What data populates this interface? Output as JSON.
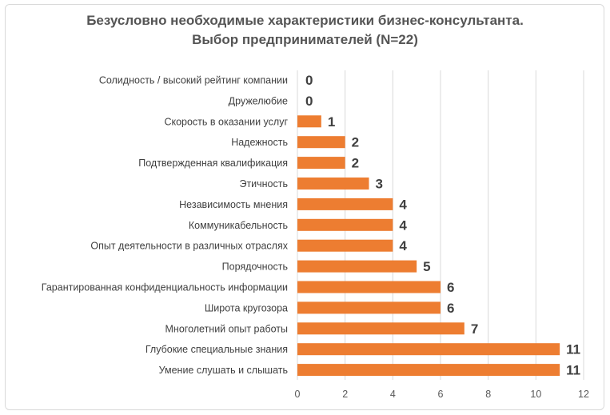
{
  "chart_data": {
    "type": "bar",
    "orientation": "horizontal",
    "title": "Безусловно необходимые характеристики бизнес-консультанта.",
    "subtitle": "Выбор предпринимателей (N=22)",
    "categories": [
      "Солидность / высокий рейтинг компании",
      "Дружелюбие",
      "Скорость в оказании услуг",
      "Надежность",
      "Подтвержденная квалификация",
      "Этичность",
      "Независимость мнения",
      "Коммуникабельность",
      "Опыт деятельности в различных отраслях",
      "Порядочность",
      "Гарантированная конфиденциальность информации",
      "Широта кругозора",
      "Многолетний опыт работы",
      "Глубокие специальные знания",
      "Умение слушать и слышать"
    ],
    "values": [
      0,
      0,
      1,
      2,
      2,
      3,
      4,
      4,
      4,
      5,
      6,
      6,
      7,
      11,
      11
    ],
    "data_labels": [
      "0",
      "0",
      "1",
      "2",
      "2",
      "3",
      "4",
      "4",
      "4",
      "5",
      "6",
      "6",
      "7",
      "11",
      "11"
    ],
    "xlim": [
      0,
      12
    ],
    "xticks": [
      0,
      2,
      4,
      6,
      8,
      10,
      12
    ],
    "xtick_labels": [
      "0",
      "2",
      "4",
      "6",
      "8",
      "10",
      "12"
    ],
    "grid": "vertical",
    "legend": "none",
    "bar_color": "#ed7d31"
  }
}
